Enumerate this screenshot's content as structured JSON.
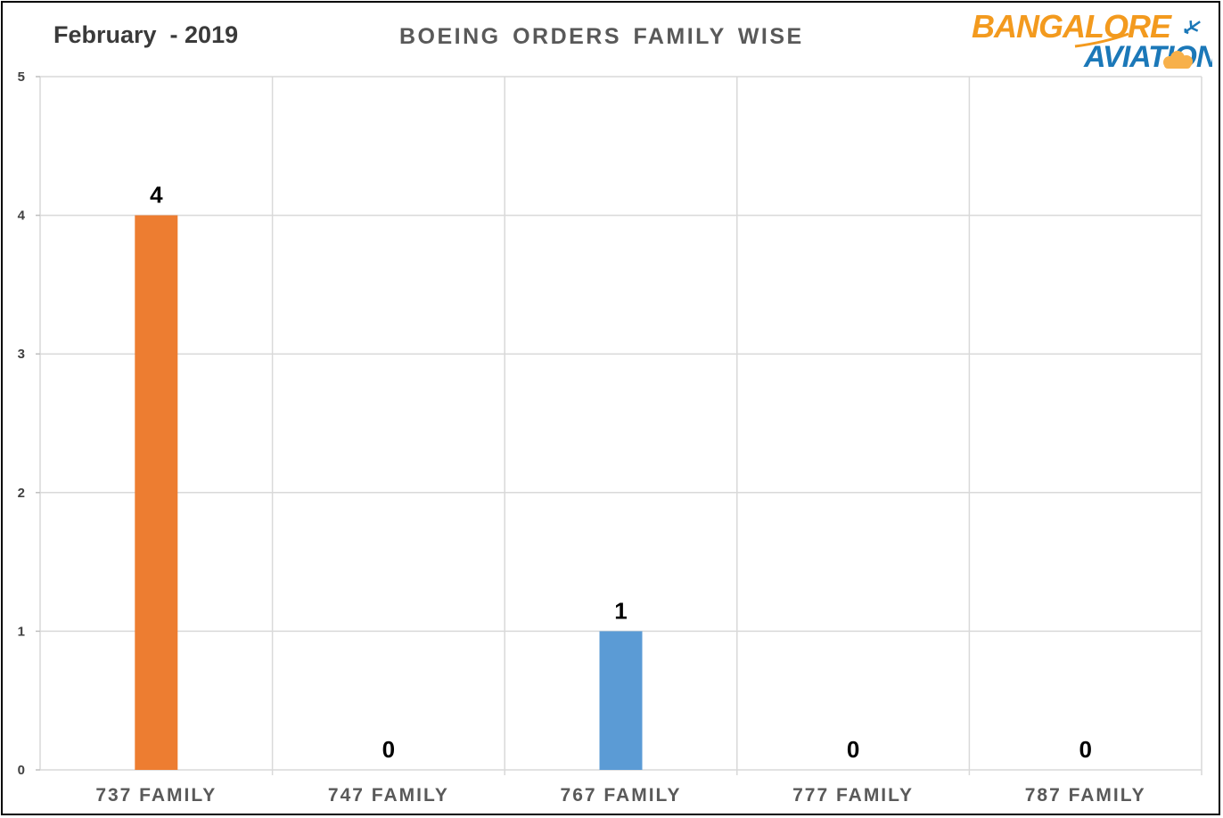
{
  "header": {
    "subtitle": "February  - 2019",
    "title": "BOEING ORDERS FAMILY WISE"
  },
  "logo": {
    "line1": "BANGALORE",
    "line2": "AVIATION",
    "orange": "#f39a1e",
    "blue": "#1b78b8"
  },
  "chart_data": {
    "type": "bar",
    "title": "BOEING ORDERS FAMILY WISE",
    "subtitle": "February  - 2019",
    "categories": [
      "737 FAMILY",
      "747 FAMILY",
      "767 FAMILY",
      "777 FAMILY",
      "787 FAMILY"
    ],
    "values": [
      4,
      0,
      1,
      0,
      0
    ],
    "bar_colors": [
      "#ed7d31",
      "#5b9bd5",
      "#5b9bd5",
      "#5b9bd5",
      "#5b9bd5"
    ],
    "ylim": [
      0,
      5
    ],
    "yticks": [
      0,
      1,
      2,
      3,
      4,
      5
    ],
    "grid": true,
    "data_labels": true,
    "legend": "none"
  }
}
